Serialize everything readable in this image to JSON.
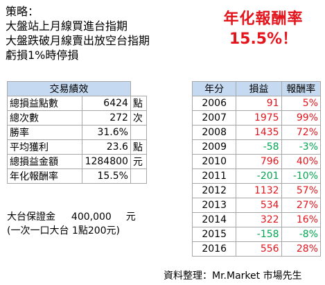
{
  "strategy": {
    "title": "策略：",
    "line1": "大盤站上月線買進台指期",
    "line2": "大盤跌破月線賣出放空台指期",
    "line3": "虧損1%時停損"
  },
  "headline": {
    "label": "年化報酬率",
    "value": "15.5%！"
  },
  "stats": {
    "header": "交易績效",
    "rows": [
      {
        "label": "總損益點數",
        "value": "6424",
        "unit": "點"
      },
      {
        "label": "總次數",
        "value": "272",
        "unit": "次"
      },
      {
        "label": "勝率",
        "value": "31.6%",
        "unit": ""
      },
      {
        "label": "平均獲利",
        "value": "23.6",
        "unit": "點"
      },
      {
        "label": "總損益金額",
        "value": "1284800",
        "unit": "元"
      },
      {
        "label": "年化報酬率",
        "value": "15.5%",
        "unit": ""
      }
    ]
  },
  "margin": {
    "label": "大台保證金",
    "amount": "400,000",
    "unit": "元",
    "note": "(一次一口大台 1點200元)"
  },
  "yearly": {
    "headers": [
      "年分",
      "損益",
      "報酬率"
    ],
    "rows": [
      {
        "year": "2006",
        "pl": "91",
        "ret": "5%",
        "sign": "pos"
      },
      {
        "year": "2007",
        "pl": "1975",
        "ret": "99%",
        "sign": "pos"
      },
      {
        "year": "2008",
        "pl": "1435",
        "ret": "72%",
        "sign": "pos"
      },
      {
        "year": "2009",
        "pl": "-58",
        "ret": "-3%",
        "sign": "neg"
      },
      {
        "year": "2010",
        "pl": "796",
        "ret": "40%",
        "sign": "pos"
      },
      {
        "year": "2011",
        "pl": "-201",
        "ret": "-10%",
        "sign": "neg"
      },
      {
        "year": "2012",
        "pl": "1132",
        "ret": "57%",
        "sign": "pos"
      },
      {
        "year": "2013",
        "pl": "534",
        "ret": "27%",
        "sign": "pos"
      },
      {
        "year": "2014",
        "pl": "322",
        "ret": "16%",
        "sign": "pos"
      },
      {
        "year": "2015",
        "pl": "-158",
        "ret": "-8%",
        "sign": "neg"
      },
      {
        "year": "2016",
        "pl": "556",
        "ret": "28%",
        "sign": "pos"
      }
    ]
  },
  "credit": "資料整理：Mr.Market 市場先生",
  "colors": {
    "positive": "#e3141b",
    "negative": "#00a651",
    "header_bg": "#c5d9f1",
    "headline": "#e3141b"
  }
}
